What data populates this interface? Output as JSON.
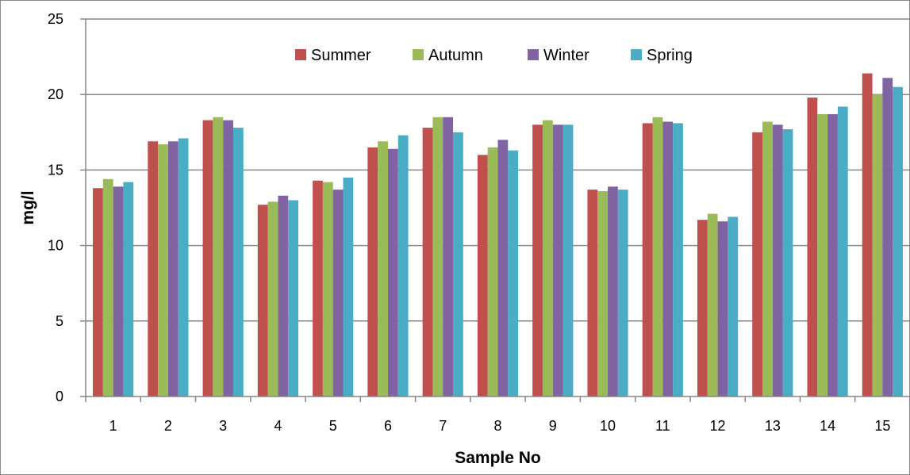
{
  "chart_data": {
    "type": "bar",
    "title": "",
    "xlabel": "Sample No",
    "ylabel": "mg/l",
    "ylim": [
      0,
      25
    ],
    "yticks": [
      0,
      5,
      10,
      15,
      20,
      25
    ],
    "grid": true,
    "legend_position": "top",
    "categories": [
      "1",
      "2",
      "3",
      "4",
      "5",
      "6",
      "7",
      "8",
      "9",
      "10",
      "11",
      "12",
      "13",
      "14",
      "15"
    ],
    "series": [
      {
        "name": "Summer",
        "color": "#c0504d",
        "values": [
          13.8,
          16.9,
          18.3,
          12.7,
          14.3,
          16.5,
          17.8,
          16.0,
          18.0,
          13.7,
          18.1,
          11.7,
          17.5,
          19.8,
          21.4
        ]
      },
      {
        "name": "Autumn",
        "color": "#9bbb59",
        "values": [
          14.4,
          16.7,
          18.5,
          12.9,
          14.2,
          16.9,
          18.5,
          16.5,
          18.3,
          13.6,
          18.5,
          12.1,
          18.2,
          18.7,
          20.0
        ]
      },
      {
        "name": "Winter",
        "color": "#8064a2",
        "values": [
          13.9,
          16.9,
          18.3,
          13.3,
          13.7,
          16.4,
          18.5,
          17.0,
          18.0,
          13.9,
          18.2,
          11.6,
          18.0,
          18.7,
          21.1
        ]
      },
      {
        "name": "Spring",
        "color": "#4bacc6",
        "values": [
          14.2,
          17.1,
          17.8,
          13.0,
          14.5,
          17.3,
          17.5,
          16.3,
          18.0,
          13.7,
          18.1,
          11.9,
          17.7,
          19.2,
          20.5
        ]
      }
    ]
  }
}
